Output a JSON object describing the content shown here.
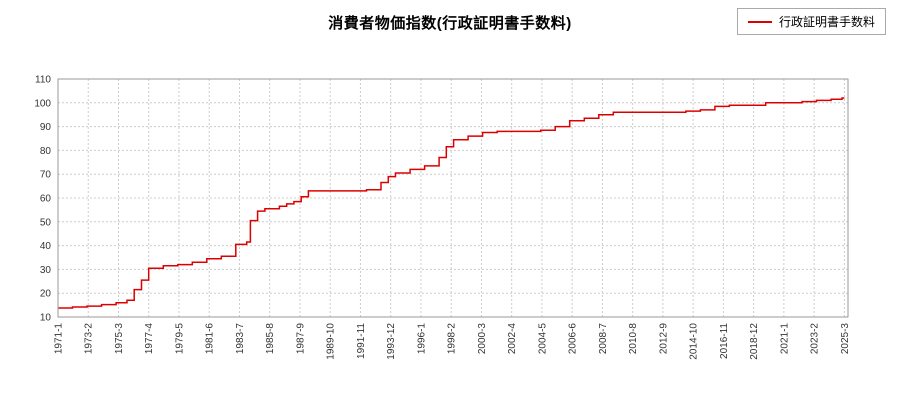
{
  "chart_data": {
    "type": "line",
    "title": "消費者物価指数(行政証明書手数料)",
    "xlabel": "",
    "ylabel": "",
    "ylim": [
      10,
      110
    ],
    "yticks": [
      10,
      20,
      30,
      40,
      50,
      60,
      70,
      80,
      90,
      100,
      110
    ],
    "grid": true,
    "legend_position": "top-right",
    "x_unit": "year-month",
    "x_range": [
      "1971-1",
      "2025-3"
    ],
    "xticks": [
      "1971-1",
      "1973-2",
      "1975-3",
      "1977-4",
      "1979-5",
      "1981-6",
      "1983-7",
      "1985-8",
      "1987-9",
      "1989-10",
      "1991-11",
      "1993-12",
      "1996-1",
      "1998-2",
      "2000-3",
      "2002-4",
      "2004-5",
      "2006-6",
      "2008-7",
      "2010-8",
      "2012-9",
      "2014-10",
      "2016-11",
      "2018-12",
      "2021-1",
      "2023-2",
      "2025-3"
    ],
    "series": [
      {
        "name": "行政証明書手数料",
        "color": "#dd0000",
        "interpolation": "step-after",
        "step_points": [
          [
            "1971-1",
            13.8
          ],
          [
            "1972-1",
            14.2
          ],
          [
            "1973-1",
            14.6
          ],
          [
            "1974-1",
            15.2
          ],
          [
            "1975-1",
            16.0
          ],
          [
            "1975-10",
            17.0
          ],
          [
            "1976-4",
            21.5
          ],
          [
            "1976-10",
            25.5
          ],
          [
            "1977-4",
            30.5
          ],
          [
            "1978-4",
            31.5
          ],
          [
            "1979-4",
            32.0
          ],
          [
            "1980-4",
            33.0
          ],
          [
            "1981-4",
            34.5
          ],
          [
            "1982-4",
            35.5
          ],
          [
            "1983-4",
            40.5
          ],
          [
            "1984-1",
            41.5
          ],
          [
            "1984-4",
            50.5
          ],
          [
            "1984-10",
            54.5
          ],
          [
            "1985-4",
            55.5
          ],
          [
            "1986-4",
            56.5
          ],
          [
            "1986-10",
            57.5
          ],
          [
            "1987-4",
            58.5
          ],
          [
            "1987-10",
            60.5
          ],
          [
            "1988-4",
            63.0
          ],
          [
            "1992-4",
            63.5
          ],
          [
            "1993-4",
            66.5
          ],
          [
            "1993-10",
            69.0
          ],
          [
            "1994-4",
            70.5
          ],
          [
            "1995-4",
            72.0
          ],
          [
            "1996-4",
            73.5
          ],
          [
            "1997-4",
            77.0
          ],
          [
            "1997-10",
            81.5
          ],
          [
            "1998-4",
            84.5
          ],
          [
            "1999-4",
            86.0
          ],
          [
            "2000-4",
            87.5
          ],
          [
            "2001-4",
            88.0
          ],
          [
            "2004-4",
            88.5
          ],
          [
            "2005-4",
            90.0
          ],
          [
            "2006-4",
            92.5
          ],
          [
            "2007-4",
            93.5
          ],
          [
            "2008-4",
            95.0
          ],
          [
            "2009-4",
            96.0
          ],
          [
            "2014-4",
            96.5
          ],
          [
            "2015-4",
            97.0
          ],
          [
            "2016-4",
            98.5
          ],
          [
            "2017-4",
            99.0
          ],
          [
            "2019-10",
            100.0
          ],
          [
            "2022-4",
            100.5
          ],
          [
            "2023-4",
            101.0
          ],
          [
            "2024-4",
            101.5
          ],
          [
            "2025-1",
            102.0
          ]
        ]
      }
    ],
    "colors": {
      "line": "#dd0000",
      "grid": "#cccccc",
      "border": "#999999",
      "text": "#333333",
      "background": "#ffffff"
    }
  }
}
